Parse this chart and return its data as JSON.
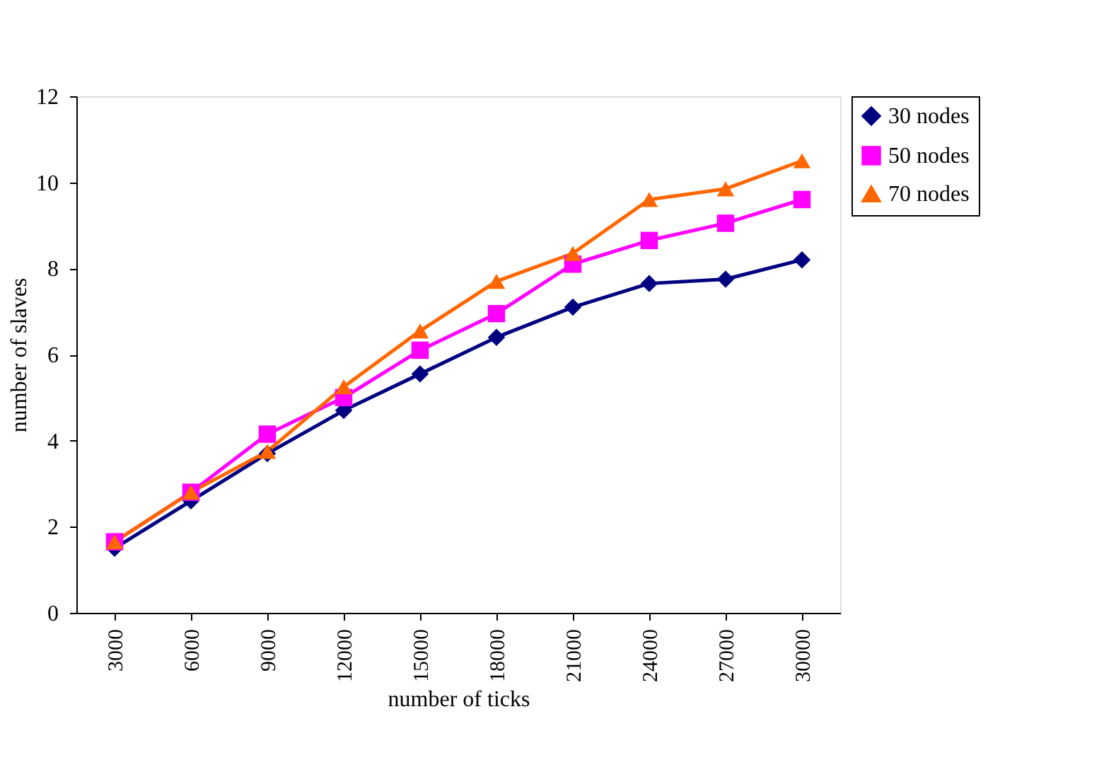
{
  "chart_data": {
    "type": "line",
    "xlabel": "number of ticks",
    "ylabel": "number of slaves",
    "categories": [
      "3000",
      "6000",
      "9000",
      "12000",
      "15000",
      "18000",
      "21000",
      "24000",
      "27000",
      "30000"
    ],
    "series": [
      {
        "name": "30 nodes",
        "color": "#000080",
        "marker": "diamond",
        "values": [
          1.5,
          2.6,
          3.7,
          4.7,
          5.55,
          6.4,
          7.1,
          7.65,
          7.75,
          8.2
        ]
      },
      {
        "name": "50 nodes",
        "color": "#ff00ff",
        "marker": "square",
        "values": [
          1.65,
          2.8,
          4.15,
          5.0,
          6.1,
          6.95,
          8.1,
          8.65,
          9.05,
          9.6
        ]
      },
      {
        "name": "70 nodes",
        "color": "#ff6600",
        "marker": "triangle",
        "values": [
          1.65,
          2.8,
          3.75,
          5.25,
          6.55,
          7.7,
          8.35,
          9.6,
          9.85,
          10.5
        ]
      }
    ],
    "ylim": [
      0,
      12
    ],
    "yticks": [
      0,
      2,
      4,
      6,
      8,
      10,
      12
    ],
    "grid": false,
    "legend": "top right",
    "line_style": "solid"
  }
}
